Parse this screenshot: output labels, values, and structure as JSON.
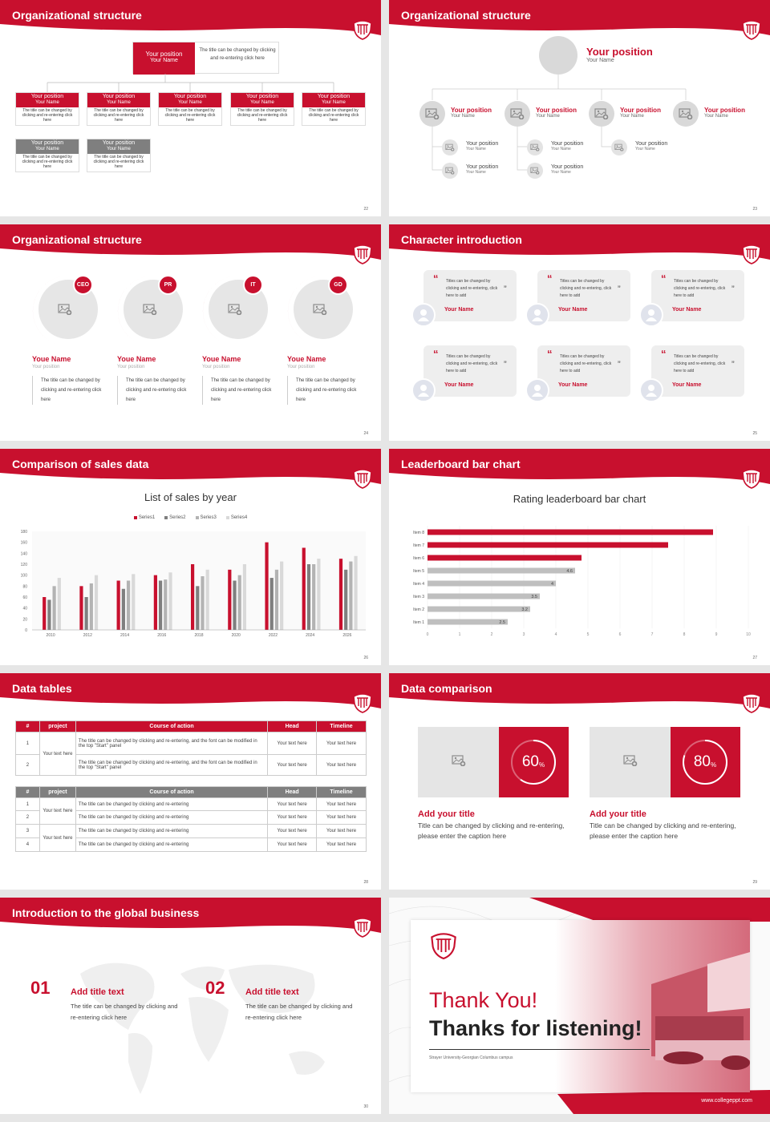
{
  "slides": [
    {
      "num": "22",
      "title": "Organizational structure",
      "top_box": {
        "position": "Your position",
        "name": "Your Name",
        "desc": "The title can be changed by clicking and re-entering click here"
      },
      "row1": [
        {
          "position": "Your position",
          "name": "Your Name",
          "desc": "The title can be changed by clicking and re-entering click here"
        },
        {
          "position": "Your position",
          "name": "Your Name",
          "desc": "The title can be changed by clicking and re-entering click here"
        },
        {
          "position": "Your position",
          "name": "Your Name",
          "desc": "The title can be changed by clicking and re-entering click here"
        },
        {
          "position": "Your position",
          "name": "Your Name",
          "desc": "The title can be changed by clicking and re-entering click here"
        },
        {
          "position": "Your position",
          "name": "Your Name",
          "desc": "The title can be changed by clicking and re-entering click here"
        }
      ],
      "row2": [
        {
          "position": "Your position",
          "name": "Your Name",
          "desc": "The title can be changed by clicking and re-entering click here"
        },
        {
          "position": "Your position",
          "name": "Your Name",
          "desc": "The title can be changed by clicking and re-entering click here"
        }
      ]
    },
    {
      "num": "23",
      "title": "Organizational structure",
      "top": {
        "position": "Your position",
        "name": "Your Name"
      },
      "level2": [
        {
          "position": "Your position",
          "name": "Your Name"
        },
        {
          "position": "Your position",
          "name": "Your Name"
        },
        {
          "position": "Your position",
          "name": "Your Name"
        },
        {
          "position": "Your position",
          "name": "Your Name"
        }
      ],
      "level3": [
        {
          "position": "Your position",
          "name": "Your Name"
        },
        {
          "position": "Your position",
          "name": "Your Name"
        },
        {
          "position": "Your position",
          "name": "Your Name"
        },
        {
          "position": "Your position",
          "name": "Your Name"
        },
        {
          "position": "Your position",
          "name": "Your Name"
        }
      ]
    },
    {
      "num": "24",
      "title": "Organizational structure",
      "people": [
        {
          "badge": "CEO",
          "name": "Youe Name",
          "position": "Your position",
          "desc": "The title can be changed by clicking and re-entering click here"
        },
        {
          "badge": "PR",
          "name": "Youe Name",
          "position": "Your position",
          "desc": "The title can be changed by clicking and re-entering click here"
        },
        {
          "badge": "IT",
          "name": "Youe Name",
          "position": "Your position",
          "desc": "The title can be changed by clicking and re-entering click here"
        },
        {
          "badge": "GD",
          "name": "Youe Name",
          "position": "Your position",
          "desc": "The title can be changed by clicking and re-entering click here"
        }
      ]
    },
    {
      "num": "25",
      "title": "Character introduction",
      "cards": [
        {
          "text": "Titles can be changed by clicking and re-entering, click here to add",
          "name": "Your Name"
        },
        {
          "text": "Titles can be changed by clicking and re-entering, click here to add",
          "name": "Your Name"
        },
        {
          "text": "Titles can be changed by clicking and re-entering, click here to add",
          "name": "Your Name"
        },
        {
          "text": "Titles can be changed by clicking and re-entering, click here to add",
          "name": "Your Name"
        },
        {
          "text": "Titles can be changed by clicking and re-entering, click here to add",
          "name": "Your Name"
        },
        {
          "text": "Titles can be changed by clicking and re-entering, click here to add",
          "name": "Your Name"
        }
      ]
    },
    {
      "num": "26",
      "title": "Comparison of sales data"
    },
    {
      "num": "27",
      "title": "Leaderboard bar chart"
    },
    {
      "num": "28",
      "title": "Data tables",
      "t1_headers": [
        "#",
        "project",
        "Course of action",
        "Head",
        "Timeline"
      ],
      "t1_rows": [
        {
          "n": "1",
          "action": "The title can be changed by clicking and re-entering, and the font can be modified in the top \"Start\" panel",
          "head": "Your text here",
          "time": "Your text here"
        },
        {
          "n": "2",
          "action": "The title can be changed by clicking and re-entering, and the font can be modified in the top \"Start\" panel",
          "head": "Your text here",
          "time": "Your text here"
        }
      ],
      "t1_project": "Your text here",
      "t2_headers": [
        "#",
        "project",
        "Course of action",
        "Head",
        "Timeline"
      ],
      "t2_rows": [
        {
          "n": "1",
          "action": "The title can be changed by clicking and re-entering",
          "head": "Your text here",
          "time": "Your text here"
        },
        {
          "n": "2",
          "action": "The title can be changed by clicking and re-entering",
          "head": "Your text here",
          "time": "Your text here"
        },
        {
          "n": "3",
          "action": "The title can be changed by clicking and re-entering",
          "head": "Your text here",
          "time": "Your text here"
        },
        {
          "n": "4",
          "action": "The title can be changed by clicking and re-entering",
          "head": "Your text here",
          "time": "Your text here"
        }
      ],
      "t2_project_a": "Your text here",
      "t2_project_b": "Your text here"
    },
    {
      "num": "29",
      "title": "Data comparison",
      "items": [
        {
          "pct": "60",
          "unit": "%",
          "value": 0.6,
          "title": "Add your title",
          "desc": "Title can be changed by clicking and re-entering, please enter the caption here"
        },
        {
          "pct": "80",
          "unit": "%",
          "value": 0.8,
          "title": "Add your title",
          "desc": "Title can be changed by clicking and re-entering, please enter the caption here"
        }
      ]
    },
    {
      "num": "30",
      "title": "Introduction to the global business",
      "items": [
        {
          "n": "01",
          "title": "Add title text",
          "desc": "The title can be changed by clicking and re-entering click here"
        },
        {
          "n": "02",
          "title": "Add title text",
          "desc": "The title can be changed by clicking and re-entering click here"
        }
      ]
    },
    {
      "thanks1": "Thank You!",
      "thanks2": "Thanks for listening!",
      "caption": "Strayer University-Georgian Columbus campus",
      "url": "www.collegeppt.com"
    }
  ],
  "chart_data": [
    {
      "type": "bar",
      "title": "List of sales by year",
      "categories": [
        "2010",
        "2012",
        "2014",
        "2016",
        "2018",
        "2020",
        "2022",
        "2024",
        "2026"
      ],
      "ylim": [
        0,
        180
      ],
      "yticks": [
        "0",
        "20",
        "40",
        "60",
        "80",
        "100",
        "120",
        "140",
        "160",
        "180"
      ],
      "series": [
        {
          "name": "Series1",
          "color": "#c8102e",
          "values": [
            60,
            80,
            90,
            100,
            120,
            110,
            160,
            150,
            130
          ]
        },
        {
          "name": "Series2",
          "color": "#7f7f7f",
          "values": [
            55,
            60,
            75,
            90,
            80,
            90,
            95,
            120,
            110
          ]
        },
        {
          "name": "Series3",
          "color": "#b3b3b3",
          "values": [
            80,
            85,
            90,
            92,
            98,
            100,
            110,
            120,
            125
          ]
        },
        {
          "name": "Series4",
          "color": "#d9d9d9",
          "values": [
            95,
            100,
            102,
            105,
            110,
            120,
            125,
            130,
            135
          ]
        }
      ]
    },
    {
      "type": "bar",
      "orientation": "horizontal",
      "title": "Rating leaderboard bar chart",
      "categories": [
        "Item 1",
        "Item 2",
        "Item 3",
        "Item 4",
        "Item 5",
        "Item 6",
        "Item 7",
        "Item 8"
      ],
      "values": [
        2.5,
        3.2,
        3.5,
        4,
        4.6,
        4.8,
        7.5,
        8.9
      ],
      "labels": [
        "2.5",
        "3.2",
        "3.5",
        "4",
        "4.6",
        "",
        "",
        ""
      ],
      "colors": [
        "#bfbfbf",
        "#bfbfbf",
        "#bfbfbf",
        "#bfbfbf",
        "#bfbfbf",
        "#c8102e",
        "#c8102e",
        "#c8102e"
      ],
      "xlim": [
        0,
        10
      ],
      "xticks": [
        "0",
        "1",
        "2",
        "3",
        "4",
        "5",
        "6",
        "7",
        "8",
        "9",
        "10"
      ]
    }
  ]
}
